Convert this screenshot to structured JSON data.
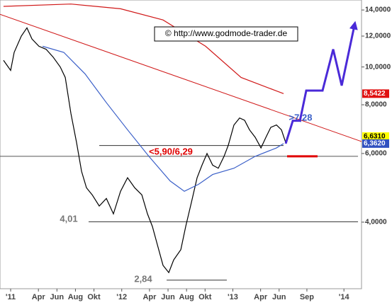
{
  "chart_data": {
    "type": "line",
    "log_scale": true,
    "xlim": [
      -1.15,
      37.9
    ],
    "ylim": [
      2.7,
      14.85
    ],
    "xticks": [
      {
        "value": 0,
        "label": "'11"
      },
      {
        "value": 3,
        "label": "Apr"
      },
      {
        "value": 5,
        "label": "Jun"
      },
      {
        "value": 7,
        "label": "Aug"
      },
      {
        "value": 9,
        "label": "Okt"
      },
      {
        "value": 12,
        "label": "'12"
      },
      {
        "value": 15,
        "label": "Apr"
      },
      {
        "value": 17,
        "label": "Jun"
      },
      {
        "value": 19,
        "label": "Aug"
      },
      {
        "value": 21,
        "label": "Okt"
      },
      {
        "value": 24,
        "label": "'13"
      },
      {
        "value": 27,
        "label": "Apr"
      },
      {
        "value": 29,
        "label": "Jun"
      },
      {
        "value": 32,
        "label": "Sep"
      },
      {
        "value": 36,
        "label": "'14"
      }
    ],
    "yticks": [
      {
        "value": 4,
        "label": "4,0000"
      },
      {
        "value": 6,
        "label": "6,0000"
      },
      {
        "value": 8,
        "label": "8,0000"
      },
      {
        "value": 10,
        "label": "10,0000"
      },
      {
        "value": 12,
        "label": "12,0000"
      },
      {
        "value": 14,
        "label": "14,0000"
      }
    ],
    "series": [
      {
        "color": "#000000",
        "x": [
          -0.77,
          0,
          0.38,
          1.15,
          1.76,
          2.3,
          3.06,
          3.83,
          4.59,
          5.36,
          5.9,
          6.51,
          7.12,
          7.66,
          8.19,
          8.81,
          9.57,
          10.34,
          11.1,
          11.87,
          12.63,
          13.4,
          14.17,
          14.78,
          15.31,
          15.85,
          16.46,
          17.08,
          17.61,
          18.38,
          18.91,
          19.53,
          20.14,
          20.67,
          21.21,
          21.82,
          22.43,
          23.05,
          23.51,
          24.12,
          24.73,
          25.27,
          25.8,
          26.42,
          27.04,
          27.57,
          28.1,
          28.71,
          29.25,
          29.71
        ],
        "values": [
          10.4,
          9.8,
          10.9,
          12.0,
          12.6,
          11.8,
          11.3,
          11.1,
          10.6,
          10.0,
          9.4,
          7.6,
          6.4,
          5.4,
          4.9,
          4.7,
          4.4,
          4.6,
          4.2,
          4.8,
          5.2,
          4.9,
          4.7,
          4.2,
          3.9,
          3.5,
          3.1,
          2.97,
          3.2,
          3.4,
          3.9,
          4.5,
          5.2,
          5.6,
          6.0,
          5.6,
          5.5,
          5.9,
          6.3,
          7.1,
          7.4,
          7.3,
          6.9,
          6.6,
          6.2,
          6.6,
          7.0,
          7.1,
          6.9,
          6.4
        ]
      },
      {
        "color": "#d01818",
        "x": [
          -0.77,
          6.51,
          11.87,
          16.46,
          21.06,
          24.89,
          29.48
        ],
        "values": [
          14.3,
          14.5,
          14.1,
          13.2,
          11.3,
          9.4,
          8.5422
        ]
      },
      {
        "color": "#3a5fc8",
        "x": [
          3.45,
          5.74,
          8.04,
          10.34,
          12.63,
          14.93,
          17.23,
          18.76,
          20.29,
          21.82,
          24.12,
          26.42,
          28.71,
          29.48
        ],
        "values": [
          11.3,
          10.9,
          9.6,
          8.1,
          6.9,
          5.9,
          5.1,
          4.8,
          5.0,
          5.3,
          5.5,
          5.9,
          6.2,
          6.362
        ]
      }
    ],
    "lines": [
      {
        "color": "#d01818",
        "x": [
          -1.15,
          37.9
        ],
        "values": [
          13.65,
          6.44
        ]
      },
      {
        "color": "#333333",
        "x": [
          9.57,
          29.48
        ],
        "values": [
          6.29,
          6.29
        ]
      },
      {
        "color": "#333333",
        "x": [
          8.42,
          37.52
        ],
        "values": [
          4.01,
          4.01
        ]
      },
      {
        "color": "#333333",
        "x": [
          16.85,
          23.35
        ],
        "values": [
          2.84,
          2.84
        ]
      },
      {
        "color": "#555555",
        "x": [
          -1.15,
          37.52
        ],
        "values": [
          5.9,
          5.9
        ]
      },
      {
        "color": "#e00000",
        "thick": true,
        "x": [
          29.86,
          33.15
        ],
        "values": [
          5.9,
          5.9
        ]
      },
      {
        "color": "#4a2ad8",
        "thick": true,
        "arrow": true,
        "x": [
          29.71,
          30.48,
          31.25,
          31.93,
          33.69,
          34.84,
          35.76,
          37.14
        ],
        "values": [
          6.36,
          7.28,
          7.28,
          8.7,
          8.7,
          11.1,
          8.96,
          12.8
        ]
      }
    ],
    "price_labels": [
      {
        "value": 8.5422,
        "label": "8,5422",
        "color": "#e01010"
      },
      {
        "value": 6.631,
        "label": "6,6310",
        "color": "#ffff00"
      },
      {
        "value": 6.362,
        "label": "6,3620",
        "color": "#3050c0"
      }
    ],
    "annotations": [
      "© http://www.godmode-trader.de",
      "4,01",
      "2,84",
      "<5,90/6,29",
      ">7,28"
    ]
  }
}
